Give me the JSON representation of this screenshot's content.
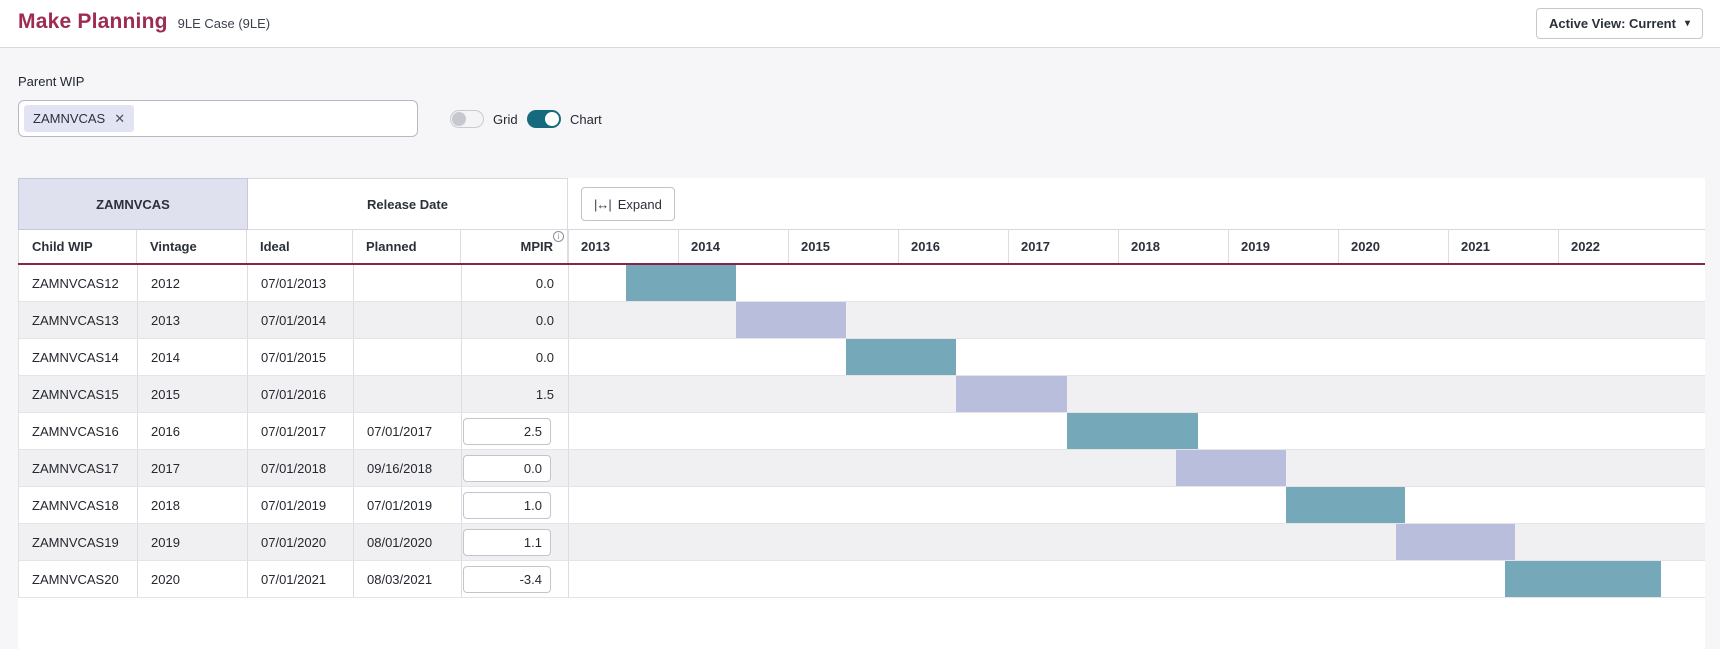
{
  "header": {
    "title": "Make Planning",
    "subtitle": "9LE Case (9LE)",
    "active_view_label": "Active View: Current"
  },
  "filters": {
    "parent_wip_label": "Parent WIP",
    "parent_wip_tag": "ZAMNVCAS",
    "grid_label": "Grid",
    "chart_label": "Chart",
    "grid_on": false,
    "chart_on": true
  },
  "table": {
    "group_left_label": "ZAMNVCAS",
    "group_release_label": "Release Date",
    "expand_label": "Expand",
    "expand_icon": "|↔|",
    "columns": [
      "Child WIP",
      "Vintage",
      "Ideal",
      "Planned",
      "MPIR"
    ],
    "mpir_info_icon": "i",
    "years": [
      "2013",
      "2014",
      "2015",
      "2016",
      "2017",
      "2018",
      "2019",
      "2020",
      "2021",
      "2022"
    ],
    "rows": [
      {
        "child_wip": "ZAMNVCAS12",
        "vintage": "2012",
        "ideal": "07/01/2013",
        "planned": "",
        "mpir": "0.0",
        "mpir_editable": false,
        "bar": {
          "start_year": 2013.52,
          "end_year": 2014.52,
          "color": "teal"
        }
      },
      {
        "child_wip": "ZAMNVCAS13",
        "vintage": "2013",
        "ideal": "07/01/2014",
        "planned": "",
        "mpir": "0.0",
        "mpir_editable": false,
        "bar": {
          "start_year": 2014.52,
          "end_year": 2015.52,
          "color": "lavender"
        }
      },
      {
        "child_wip": "ZAMNVCAS14",
        "vintage": "2014",
        "ideal": "07/01/2015",
        "planned": "",
        "mpir": "0.0",
        "mpir_editable": false,
        "bar": {
          "start_year": 2015.52,
          "end_year": 2016.52,
          "color": "teal"
        }
      },
      {
        "child_wip": "ZAMNVCAS15",
        "vintage": "2015",
        "ideal": "07/01/2016",
        "planned": "",
        "mpir": "1.5",
        "mpir_editable": false,
        "bar": {
          "start_year": 2016.52,
          "end_year": 2017.53,
          "color": "lavender"
        }
      },
      {
        "child_wip": "ZAMNVCAS16",
        "vintage": "2016",
        "ideal": "07/01/2017",
        "planned": "07/01/2017",
        "mpir": "2.5",
        "mpir_editable": true,
        "bar": {
          "start_year": 2017.53,
          "end_year": 2018.72,
          "color": "teal"
        }
      },
      {
        "child_wip": "ZAMNVCAS17",
        "vintage": "2017",
        "ideal": "07/01/2018",
        "planned": "09/16/2018",
        "mpir": "0.0",
        "mpir_editable": true,
        "bar": {
          "start_year": 2018.52,
          "end_year": 2019.52,
          "color": "lavender"
        }
      },
      {
        "child_wip": "ZAMNVCAS18",
        "vintage": "2018",
        "ideal": "07/01/2019",
        "planned": "07/01/2019",
        "mpir": "1.0",
        "mpir_editable": true,
        "bar": {
          "start_year": 2019.52,
          "end_year": 2020.6,
          "color": "teal"
        }
      },
      {
        "child_wip": "ZAMNVCAS19",
        "vintage": "2019",
        "ideal": "07/01/2020",
        "planned": "08/01/2020",
        "mpir": "1.1",
        "mpir_editable": true,
        "bar": {
          "start_year": 2020.52,
          "end_year": 2021.6,
          "color": "lavender"
        }
      },
      {
        "child_wip": "ZAMNVCAS20",
        "vintage": "2020",
        "ideal": "07/01/2021",
        "planned": "08/03/2021",
        "mpir": "-3.4",
        "mpir_editable": true,
        "bar": {
          "start_year": 2021.51,
          "end_year": 2022.93,
          "color": "teal"
        }
      }
    ]
  },
  "colors": {
    "accent_title": "#9e2b53",
    "header_rule": "#832647",
    "bar_teal": "#75a8b8",
    "bar_lavender": "#b8bedb",
    "group_left_bg": "#dfe1ef",
    "toggle_on": "#17697e",
    "row_alt_bg": "#f0f0f2"
  }
}
